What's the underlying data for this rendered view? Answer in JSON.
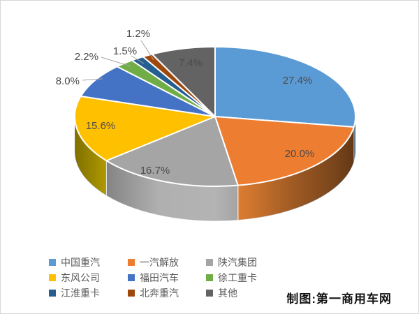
{
  "chart_data": {
    "type": "pie",
    "style": "3d",
    "title": "",
    "labels": [
      "中国重汽",
      "一汽解放",
      "陕汽集团",
      "东风公司",
      "福田汽车",
      "徐工重卡",
      "江淮重卡",
      "北奔重汽",
      "其他"
    ],
    "values": [
      27.4,
      20.0,
      16.7,
      15.6,
      8.0,
      2.2,
      1.5,
      1.2,
      7.4
    ],
    "display_labels": [
      "27.4%",
      "20.0%",
      "16.7%",
      "15.6%",
      "8.0%",
      "2.2%",
      "1.5%",
      "1.2%",
      "7.4%"
    ],
    "colors": [
      "#5B9BD5",
      "#ED7D31",
      "#A5A5A5",
      "#FFC000",
      "#4472C4",
      "#70AD47",
      "#255E91",
      "#9E480E",
      "#636363"
    ],
    "start_angle_deg": 0,
    "direction": "clockwise",
    "legend_position": "bottom",
    "label_text_color": "#4c4c4c"
  },
  "credit": {
    "text": "制图:第一商用车网"
  }
}
